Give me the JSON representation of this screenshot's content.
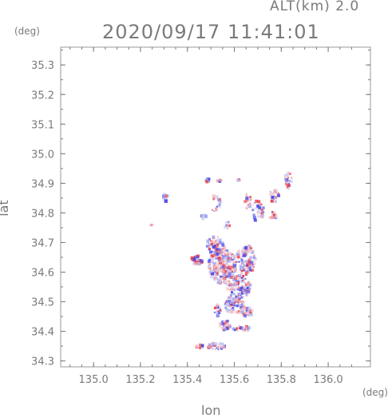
{
  "header": {
    "altitude_label": "ALT(km) 2.0",
    "datetime": "2020/09/17 11:41:01"
  },
  "chart_data": {
    "type": "heatmap",
    "title": "2020/09/17 11:41:01",
    "subtitle": "ALT(km) 2.0",
    "xlabel": "lon",
    "ylabel": "lat",
    "x_unit": "(deg)",
    "y_unit": "(deg)",
    "xlim": [
      134.86,
      136.18
    ],
    "ylim": [
      34.28,
      35.36
    ],
    "x_ticks": [
      "135.0",
      "135.2",
      "135.4",
      "135.6",
      "135.8",
      "136.0"
    ],
    "y_ticks": [
      "34.3",
      "34.4",
      "34.5",
      "34.6",
      "34.7",
      "34.8",
      "34.9",
      "35.0",
      "35.1",
      "35.2",
      "35.3"
    ],
    "grid": false,
    "colors": {
      "axis": "#7a7a7a",
      "positive": "#e8404a",
      "negative": "#4a4ae8",
      "neutral": "#c9c9f0"
    },
    "clusters": [
      {
        "lon": 135.31,
        "lat": 34.85,
        "r_lon": 0.012,
        "r_lat": 0.018,
        "n": 14
      },
      {
        "lon": 135.25,
        "lat": 34.76,
        "r_lon": 0.006,
        "r_lat": 0.006,
        "n": 4
      },
      {
        "lon": 135.49,
        "lat": 34.91,
        "r_lon": 0.012,
        "r_lat": 0.006,
        "n": 10
      },
      {
        "lon": 135.54,
        "lat": 34.91,
        "r_lon": 0.01,
        "r_lat": 0.006,
        "n": 8
      },
      {
        "lon": 135.62,
        "lat": 34.91,
        "r_lon": 0.006,
        "r_lat": 0.005,
        "n": 5
      },
      {
        "lon": 135.52,
        "lat": 34.83,
        "r_lon": 0.02,
        "r_lat": 0.03,
        "n": 20
      },
      {
        "lon": 135.47,
        "lat": 34.79,
        "r_lon": 0.01,
        "r_lat": 0.015,
        "n": 8
      },
      {
        "lon": 135.83,
        "lat": 34.91,
        "r_lon": 0.015,
        "r_lat": 0.03,
        "n": 26
      },
      {
        "lon": 135.77,
        "lat": 34.86,
        "r_lon": 0.02,
        "r_lat": 0.025,
        "n": 24
      },
      {
        "lon": 135.7,
        "lat": 34.81,
        "r_lon": 0.025,
        "r_lat": 0.04,
        "n": 32
      },
      {
        "lon": 135.66,
        "lat": 34.84,
        "r_lon": 0.015,
        "r_lat": 0.03,
        "n": 16
      },
      {
        "lon": 135.76,
        "lat": 34.79,
        "r_lon": 0.02,
        "r_lat": 0.015,
        "n": 14
      },
      {
        "lon": 135.57,
        "lat": 34.76,
        "r_lon": 0.01,
        "r_lat": 0.015,
        "n": 8
      },
      {
        "lon": 135.52,
        "lat": 34.69,
        "r_lon": 0.04,
        "r_lat": 0.03,
        "n": 60
      },
      {
        "lon": 135.44,
        "lat": 34.64,
        "r_lon": 0.025,
        "r_lat": 0.015,
        "n": 30
      },
      {
        "lon": 135.55,
        "lat": 34.62,
        "r_lon": 0.06,
        "r_lat": 0.06,
        "n": 240
      },
      {
        "lon": 135.65,
        "lat": 34.64,
        "r_lon": 0.04,
        "r_lat": 0.05,
        "n": 120
      },
      {
        "lon": 135.62,
        "lat": 34.55,
        "r_lon": 0.05,
        "r_lat": 0.04,
        "n": 110
      },
      {
        "lon": 135.6,
        "lat": 34.49,
        "r_lon": 0.04,
        "r_lat": 0.03,
        "n": 80
      },
      {
        "lon": 135.65,
        "lat": 34.47,
        "r_lon": 0.03,
        "r_lat": 0.02,
        "n": 40
      },
      {
        "lon": 135.53,
        "lat": 34.47,
        "r_lon": 0.015,
        "r_lat": 0.02,
        "n": 16
      },
      {
        "lon": 135.56,
        "lat": 34.42,
        "r_lon": 0.025,
        "r_lat": 0.015,
        "n": 30
      },
      {
        "lon": 135.63,
        "lat": 34.41,
        "r_lon": 0.04,
        "r_lat": 0.008,
        "n": 20
      },
      {
        "lon": 135.52,
        "lat": 34.35,
        "r_lon": 0.04,
        "r_lat": 0.012,
        "n": 40
      },
      {
        "lon": 135.45,
        "lat": 34.35,
        "r_lon": 0.02,
        "r_lat": 0.008,
        "n": 12
      }
    ]
  }
}
